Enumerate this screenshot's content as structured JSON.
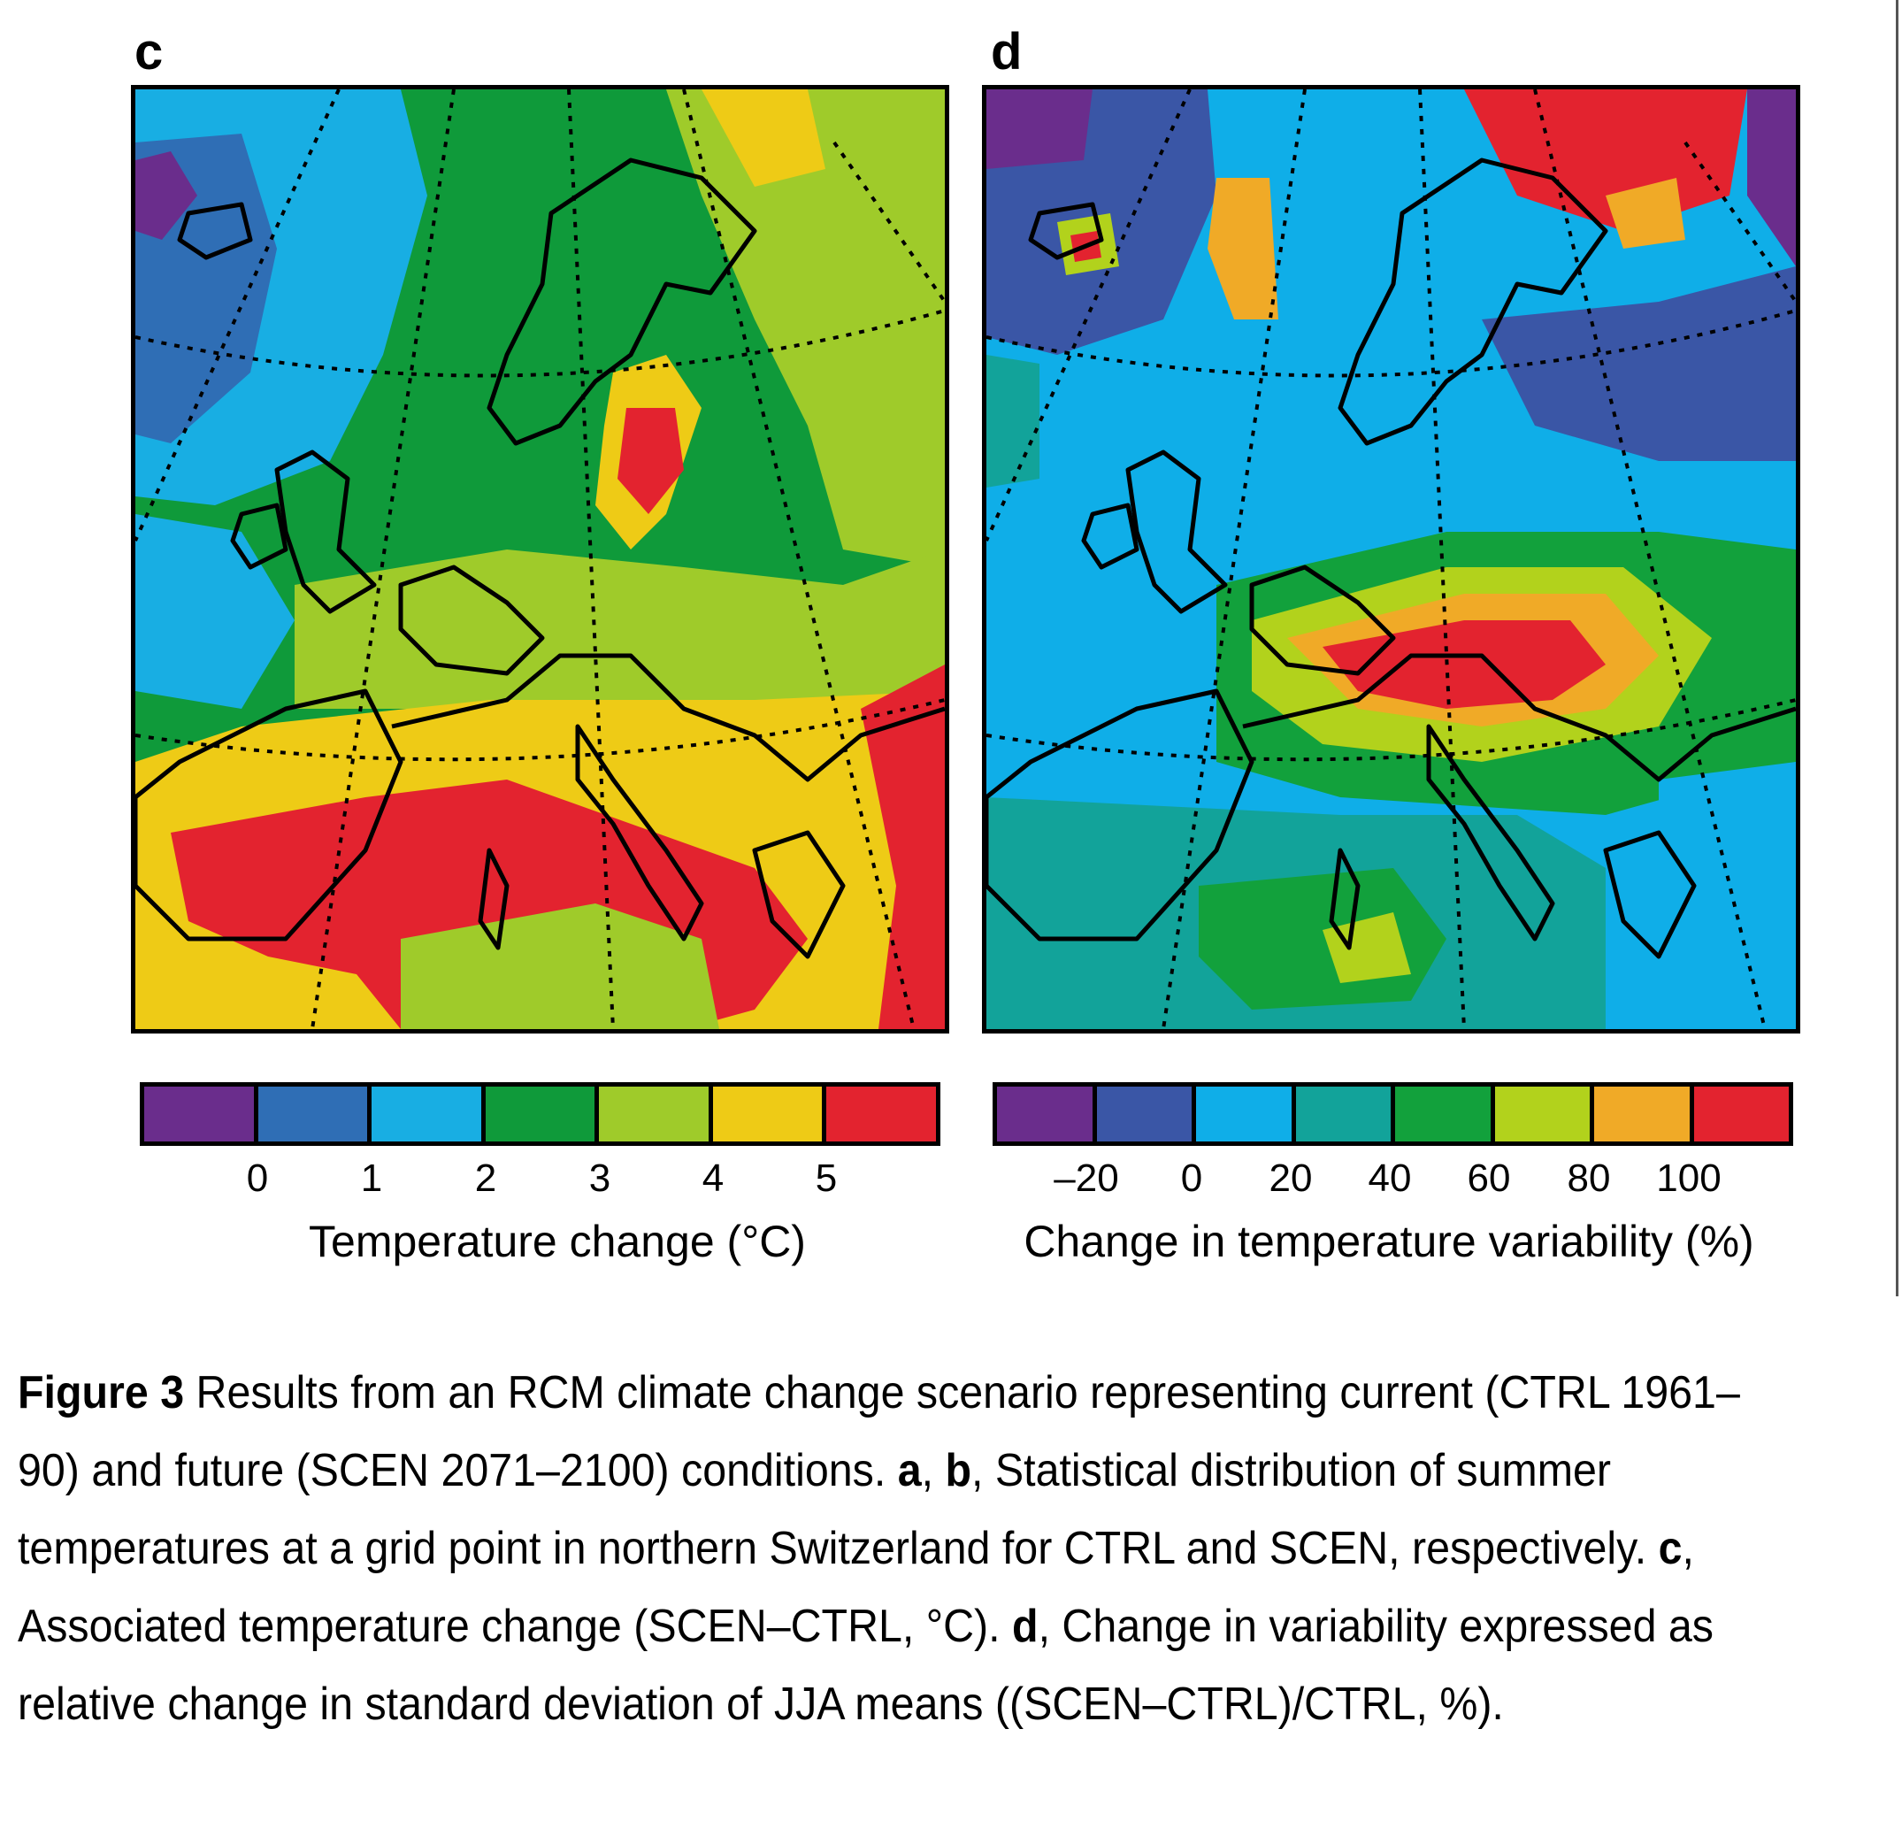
{
  "panels": [
    {
      "letter": "c",
      "colorbar": {
        "colors": [
          "#6a2d8c",
          "#2f6eb5",
          "#18aee3",
          "#0f9a3a",
          "#9fcb2a",
          "#eecb16",
          "#e3232f"
        ],
        "ticks": [
          "0",
          "1",
          "2",
          "3",
          "4",
          "5"
        ],
        "label": "Temperature change (°C)"
      }
    },
    {
      "letter": "d",
      "colorbar": {
        "colors": [
          "#6a2d8c",
          "#3a56a6",
          "#0faee8",
          "#12a39a",
          "#12a13c",
          "#b2d21c",
          "#f0aa27",
          "#e3232f"
        ],
        "ticks": [
          "–20",
          "0",
          "20",
          "40",
          "60",
          "80",
          "100"
        ],
        "label": "Change in temperature variability (%)"
      }
    }
  ],
  "caption": {
    "figure_label": "Figure 3",
    "text1": " Results from an RCM climate change scenario representing current (CTRL 1961–90) and future (SCEN 2071–2100) conditions. ",
    "ref_a": "a",
    "sep1": ", ",
    "ref_b": "b",
    "text2": ", Statistical distribution of summer temperatures at a grid point in northern Switzerland for CTRL and SCEN, respectively. ",
    "ref_c": "c",
    "text3": ", Associated temperature change (SCEN–CTRL, °C). ",
    "ref_d": "d",
    "text4": ", Change in variability expressed as relative change in standard deviation of JJA means ((SCEN–CTRL)/CTRL, %)."
  }
}
